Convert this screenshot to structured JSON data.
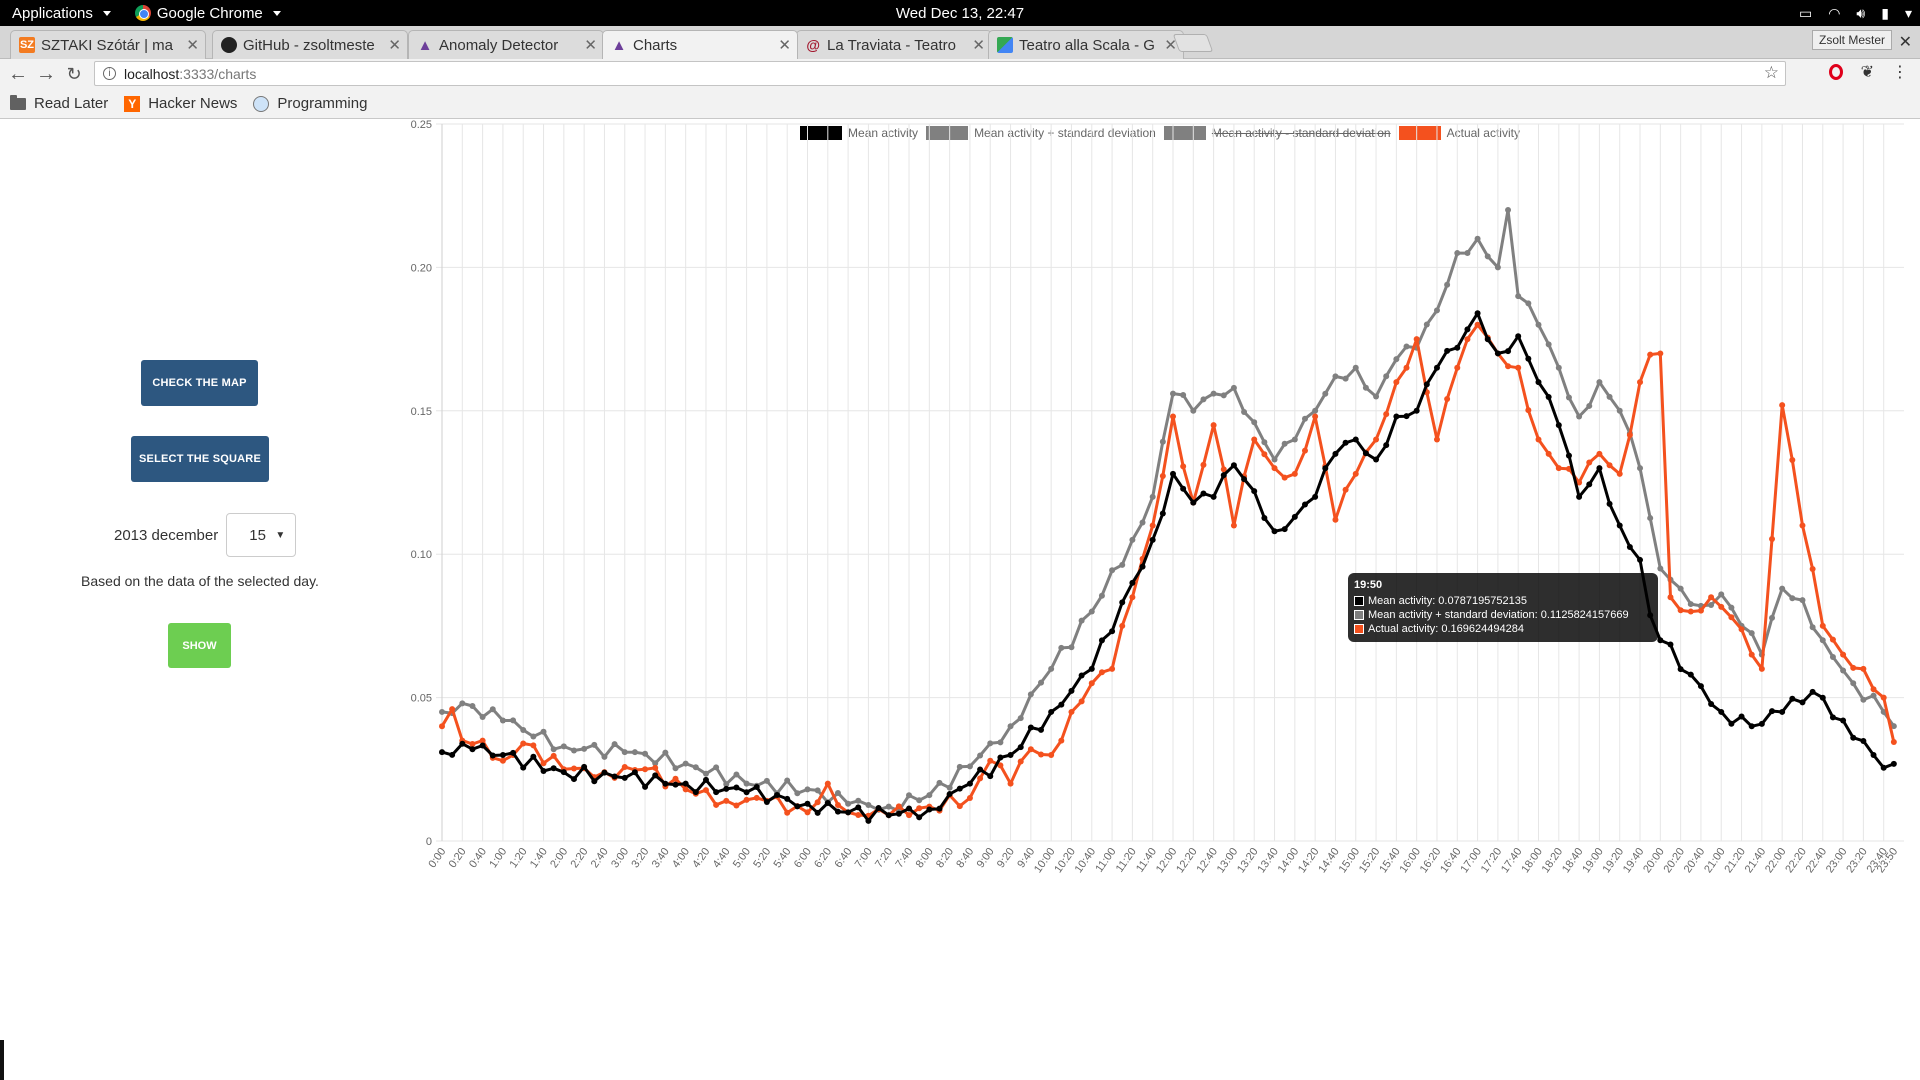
{
  "topbar": {
    "applications": "Applications",
    "app_name": "Google Chrome",
    "clock": "Wed Dec 13, 22:47"
  },
  "tabs": [
    {
      "title": "SZTAKI Szótár | ma",
      "icon": "sztaki-icon",
      "badge": "SZ",
      "color": "#f37b21"
    },
    {
      "title": "GitHub - zsoltmeste",
      "icon": "github-icon",
      "badge": "",
      "color": "#222222"
    },
    {
      "title": "Anomaly Detector",
      "icon": "angular-icon",
      "badge": "",
      "color": "#6d3f9a"
    },
    {
      "title": "Charts",
      "icon": "angular-icon",
      "badge": "",
      "color": "#6d3f9a"
    },
    {
      "title": "La Traviata - Teatro",
      "icon": "scala-icon",
      "badge": "",
      "color": "#a3192f"
    },
    {
      "title": "Teatro alla Scala - G",
      "icon": "maps-icon",
      "badge": "",
      "color": "#34a853"
    }
  ],
  "profile_name": "Zsolt Mester",
  "address": {
    "host": "localhost",
    "path": ":3333/charts"
  },
  "bookmarks": [
    "Read Later",
    "Hacker News",
    "Programming"
  ],
  "sidebar": {
    "check_map": "CHECK THE MAP",
    "select_square": "SELECT THE SQUARE",
    "date_label": "2013 december",
    "day_value": "15",
    "hint": "Based on the data of the selected day.",
    "show": "SHOW"
  },
  "tooltip": {
    "title": "19:50",
    "rows": [
      "Mean activity: 0.0787195752135",
      "Mean activity + standard deviation: 0.1125824157669",
      "Actual activity: 0.169624494284"
    ]
  },
  "chart_data": {
    "type": "line",
    "xlabel": "",
    "ylabel": "",
    "ylim": [
      0,
      0.25
    ],
    "yticks": [
      "0",
      "0.05",
      "0.10",
      "0.15",
      "0.20",
      "0.25"
    ],
    "grid": true,
    "legend_position": "top",
    "x_tick_step_minutes": 20,
    "x_interval_minutes": 10,
    "series": [
      {
        "name": "Mean activity",
        "color": "#000000",
        "hidden": false,
        "anchors": [
          [
            0,
            0.031
          ],
          [
            30,
            0.032
          ],
          [
            60,
            0.03
          ],
          [
            120,
            0.024
          ],
          [
            180,
            0.022
          ],
          [
            240,
            0.02
          ],
          [
            300,
            0.017
          ],
          [
            360,
            0.013
          ],
          [
            400,
            0.01
          ],
          [
            440,
            0.009
          ],
          [
            480,
            0.011
          ],
          [
            520,
            0.02
          ],
          [
            560,
            0.03
          ],
          [
            600,
            0.045
          ],
          [
            640,
            0.06
          ],
          [
            680,
            0.09
          ],
          [
            700,
            0.105
          ],
          [
            720,
            0.128
          ],
          [
            740,
            0.118
          ],
          [
            760,
            0.12
          ],
          [
            780,
            0.131
          ],
          [
            800,
            0.122
          ],
          [
            820,
            0.108
          ],
          [
            840,
            0.113
          ],
          [
            860,
            0.12
          ],
          [
            880,
            0.135
          ],
          [
            900,
            0.14
          ],
          [
            920,
            0.133
          ],
          [
            940,
            0.148
          ],
          [
            960,
            0.15
          ],
          [
            980,
            0.165
          ],
          [
            1000,
            0.172
          ],
          [
            1020,
            0.184
          ],
          [
            1040,
            0.17
          ],
          [
            1060,
            0.176
          ],
          [
            1080,
            0.16
          ],
          [
            1100,
            0.145
          ],
          [
            1120,
            0.12
          ],
          [
            1140,
            0.13
          ],
          [
            1160,
            0.11
          ],
          [
            1180,
            0.098
          ],
          [
            1190,
            0.0787
          ],
          [
            1200,
            0.07
          ],
          [
            1230,
            0.058
          ],
          [
            1260,
            0.045
          ],
          [
            1290,
            0.04
          ],
          [
            1320,
            0.045
          ],
          [
            1350,
            0.052
          ],
          [
            1380,
            0.042
          ],
          [
            1410,
            0.03
          ],
          [
            1439,
            0.022
          ]
        ]
      },
      {
        "name": "Mean activity + standard deviation",
        "color": "#808080",
        "hidden": false,
        "anchors": [
          [
            0,
            0.045
          ],
          [
            20,
            0.048
          ],
          [
            60,
            0.042
          ],
          [
            120,
            0.033
          ],
          [
            180,
            0.031
          ],
          [
            240,
            0.027
          ],
          [
            300,
            0.02
          ],
          [
            360,
            0.018
          ],
          [
            400,
            0.013
          ],
          [
            440,
            0.012
          ],
          [
            480,
            0.016
          ],
          [
            520,
            0.026
          ],
          [
            560,
            0.04
          ],
          [
            600,
            0.06
          ],
          [
            640,
            0.08
          ],
          [
            680,
            0.105
          ],
          [
            700,
            0.12
          ],
          [
            720,
            0.156
          ],
          [
            740,
            0.15
          ],
          [
            760,
            0.156
          ],
          [
            780,
            0.158
          ],
          [
            800,
            0.146
          ],
          [
            820,
            0.133
          ],
          [
            840,
            0.14
          ],
          [
            860,
            0.15
          ],
          [
            880,
            0.162
          ],
          [
            900,
            0.165
          ],
          [
            920,
            0.155
          ],
          [
            940,
            0.168
          ],
          [
            960,
            0.172
          ],
          [
            980,
            0.185
          ],
          [
            1000,
            0.205
          ],
          [
            1020,
            0.21
          ],
          [
            1040,
            0.2
          ],
          [
            1050,
            0.22
          ],
          [
            1060,
            0.19
          ],
          [
            1080,
            0.18
          ],
          [
            1100,
            0.165
          ],
          [
            1120,
            0.148
          ],
          [
            1140,
            0.16
          ],
          [
            1160,
            0.15
          ],
          [
            1180,
            0.13
          ],
          [
            1190,
            0.1126
          ],
          [
            1200,
            0.095
          ],
          [
            1220,
            0.088
          ],
          [
            1240,
            0.082
          ],
          [
            1260,
            0.086
          ],
          [
            1280,
            0.075
          ],
          [
            1300,
            0.065
          ],
          [
            1320,
            0.088
          ],
          [
            1340,
            0.084
          ],
          [
            1360,
            0.07
          ],
          [
            1390,
            0.055
          ],
          [
            1420,
            0.045
          ],
          [
            1439,
            0.035
          ]
        ]
      },
      {
        "name": "Mean activity - standard deviation",
        "color": "#808080",
        "hidden": true,
        "anchors": []
      },
      {
        "name": "Actual activity",
        "color": "#f4511e",
        "hidden": false,
        "anchors": [
          [
            0,
            0.04
          ],
          [
            10,
            0.046
          ],
          [
            20,
            0.035
          ],
          [
            40,
            0.035
          ],
          [
            60,
            0.028
          ],
          [
            80,
            0.034
          ],
          [
            120,
            0.025
          ],
          [
            160,
            0.024
          ],
          [
            200,
            0.025
          ],
          [
            240,
            0.018
          ],
          [
            280,
            0.014
          ],
          [
            320,
            0.014
          ],
          [
            360,
            0.01
          ],
          [
            380,
            0.02
          ],
          [
            400,
            0.01
          ],
          [
            440,
            0.009
          ],
          [
            480,
            0.012
          ],
          [
            520,
            0.015
          ],
          [
            540,
            0.028
          ],
          [
            560,
            0.02
          ],
          [
            580,
            0.032
          ],
          [
            600,
            0.03
          ],
          [
            620,
            0.045
          ],
          [
            640,
            0.055
          ],
          [
            660,
            0.06
          ],
          [
            680,
            0.085
          ],
          [
            700,
            0.11
          ],
          [
            720,
            0.148
          ],
          [
            740,
            0.118
          ],
          [
            760,
            0.145
          ],
          [
            780,
            0.11
          ],
          [
            800,
            0.14
          ],
          [
            820,
            0.13
          ],
          [
            840,
            0.128
          ],
          [
            860,
            0.148
          ],
          [
            880,
            0.112
          ],
          [
            900,
            0.128
          ],
          [
            920,
            0.14
          ],
          [
            940,
            0.16
          ],
          [
            960,
            0.175
          ],
          [
            980,
            0.14
          ],
          [
            1000,
            0.165
          ],
          [
            1020,
            0.18
          ],
          [
            1040,
            0.17
          ],
          [
            1060,
            0.165
          ],
          [
            1080,
            0.14
          ],
          [
            1100,
            0.13
          ],
          [
            1120,
            0.125
          ],
          [
            1140,
            0.135
          ],
          [
            1160,
            0.128
          ],
          [
            1180,
            0.16
          ],
          [
            1190,
            0.1696
          ],
          [
            1200,
            0.17
          ],
          [
            1210,
            0.085
          ],
          [
            1230,
            0.08
          ],
          [
            1250,
            0.085
          ],
          [
            1270,
            0.078
          ],
          [
            1290,
            0.065
          ],
          [
            1300,
            0.06
          ],
          [
            1320,
            0.152
          ],
          [
            1340,
            0.11
          ],
          [
            1360,
            0.075
          ],
          [
            1380,
            0.065
          ],
          [
            1400,
            0.06
          ],
          [
            1420,
            0.05
          ],
          [
            1439,
            0.02
          ]
        ]
      }
    ]
  }
}
